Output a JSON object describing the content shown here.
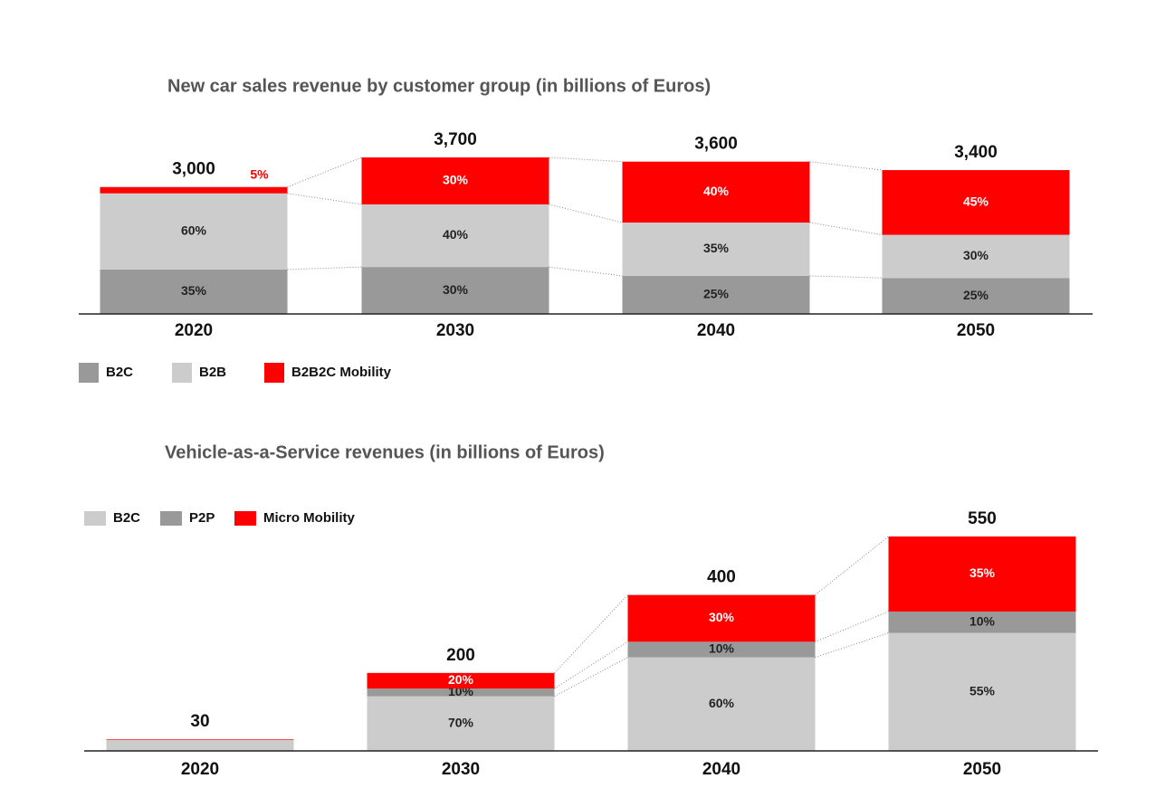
{
  "chart_data": [
    {
      "type": "bar",
      "stacked": true,
      "title": "New car sales revenue by customer group (in billions of Euros)",
      "categories": [
        "2020",
        "2030",
        "2040",
        "2050"
      ],
      "totals": {
        "values": [
          3000,
          3700,
          3600,
          3400
        ],
        "value_labels": [
          "3,000",
          "3,700",
          "3,600",
          "3,400"
        ]
      },
      "series": [
        {
          "name": "B2C",
          "color": "#999999",
          "values": [
            35,
            30,
            25,
            25
          ],
          "value_labels": [
            "35%",
            "30%",
            "25%",
            "25%"
          ]
        },
        {
          "name": "B2B",
          "color": "#cccccc",
          "values": [
            60,
            40,
            35,
            30
          ],
          "value_labels": [
            "60%",
            "40%",
            "35%",
            "30%"
          ]
        },
        {
          "name": "B2B2C Mobility",
          "color": "#ff0000",
          "values": [
            5,
            30,
            40,
            45
          ],
          "value_labels": [
            "5%",
            "30%",
            "40%",
            "45%"
          ]
        }
      ],
      "legend": "bottom-left"
    },
    {
      "type": "bar",
      "stacked": true,
      "title": "Vehicle-as-a-Service revenues (in billions of Euros)",
      "categories": [
        "2020",
        "2030",
        "2040",
        "2050"
      ],
      "totals": {
        "values": [
          30,
          200,
          400,
          550
        ]
      },
      "series": [
        {
          "name": "B2C",
          "color": "#cccccc",
          "values": [
            95,
            70,
            60,
            55
          ],
          "value_labels": [
            null,
            "70%",
            "60%",
            "55%"
          ]
        },
        {
          "name": "P2P",
          "color": "#999999",
          "values": [
            0,
            10,
            10,
            10
          ],
          "value_labels": [
            null,
            "10%",
            "10%",
            "10%"
          ]
        },
        {
          "name": "Micro Mobility",
          "color": "#ff0000",
          "values": [
            5,
            20,
            30,
            35
          ],
          "value_labels": [
            null,
            "20%",
            "30%",
            "35%"
          ]
        }
      ],
      "legend": "top-left"
    }
  ]
}
